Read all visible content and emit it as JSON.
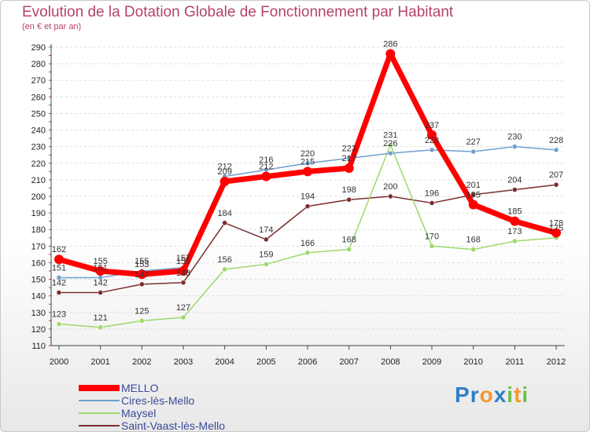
{
  "chart_data": {
    "type": "line",
    "title": "Evolution de la Dotation Globale de Fonctionnement par Habitant",
    "subtitle": "(en € et par an)",
    "xlabel": "",
    "ylabel": "",
    "categories": [
      "2000",
      "2001",
      "2002",
      "2003",
      "2004",
      "2005",
      "2006",
      "2007",
      "2008",
      "2009",
      "2010",
      "2011",
      "2012"
    ],
    "ylim": [
      110,
      290
    ],
    "yticks": [
      110,
      120,
      130,
      140,
      150,
      160,
      170,
      180,
      190,
      200,
      210,
      220,
      230,
      240,
      250,
      260,
      270,
      280,
      290
    ],
    "grid": true,
    "series": [
      {
        "name": "MELLO",
        "color": "#ff0000",
        "values": [
          162,
          155,
          153,
          155,
          209,
          212,
          215,
          217,
          286,
          237,
          195,
          185,
          178
        ]
      },
      {
        "name": "Cires-lès-Mello",
        "color": "#6f9fd0",
        "values": [
          151,
          151,
          155,
          157,
          212,
          216,
          220,
          223,
          226,
          228,
          227,
          230,
          228
        ]
      },
      {
        "name": "Maysel",
        "color": "#9fd86b",
        "values": [
          123,
          121,
          125,
          127,
          156,
          159,
          166,
          168,
          231,
          170,
          168,
          173,
          175
        ]
      },
      {
        "name": "Saint-Vaast-lès-Mello",
        "color": "#7a2e2e",
        "values": [
          142,
          142,
          147,
          148,
          184,
          174,
          194,
          198,
          200,
          196,
          201,
          204,
          207
        ]
      }
    ]
  },
  "brand": {
    "text": "Proxiti",
    "letters": [
      {
        "ch": "P",
        "color": "#2f7fc6"
      },
      {
        "ch": "r",
        "color": "#2f7fc6"
      },
      {
        "ch": "o",
        "color": "#f29a2e"
      },
      {
        "ch": "x",
        "color": "#2f7fc6"
      },
      {
        "ch": "i",
        "color": "#6cc04a"
      },
      {
        "ch": "t",
        "color": "#f29a2e"
      },
      {
        "ch": "i",
        "color": "#6cc04a"
      }
    ]
  }
}
